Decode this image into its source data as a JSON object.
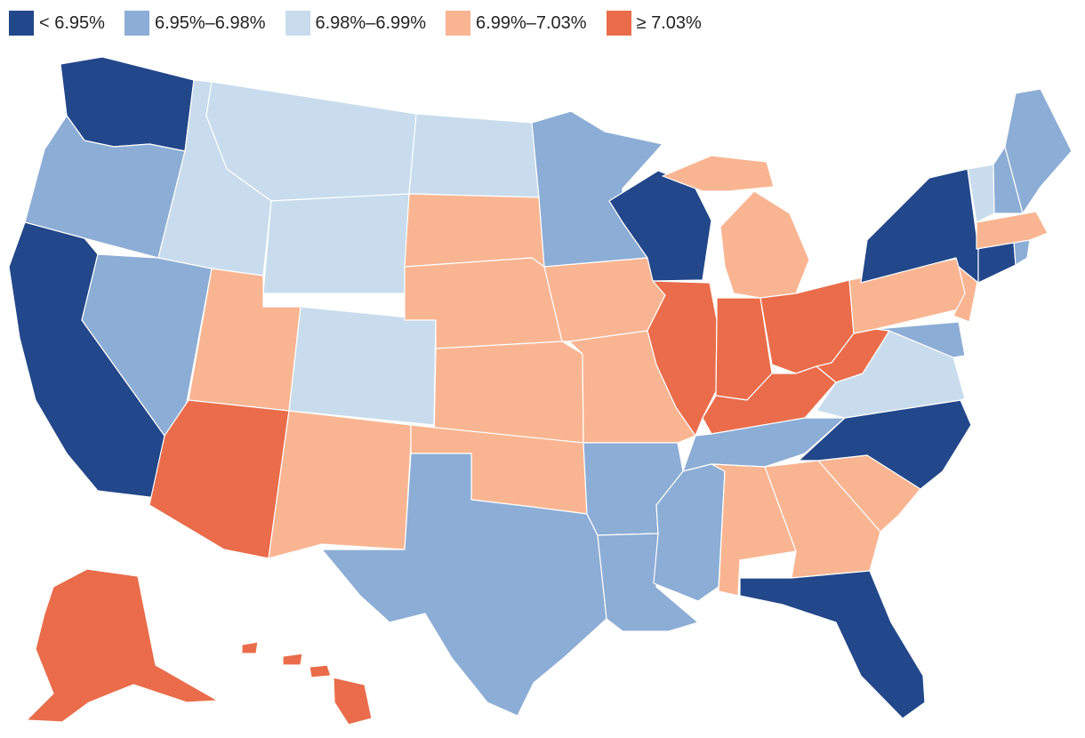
{
  "legend": [
    {
      "label": "< 6.95%",
      "color": "#22478a"
    },
    {
      "label": "6.95%–6.98%",
      "color": "#8cadd5"
    },
    {
      "label": "6.98%–6.99%",
      "color": "#c8dced"
    },
    {
      "label": "6.99%–7.03%",
      "color": "#f9b591"
    },
    {
      "label": "≥ 7.03%",
      "color": "#ea6c4a"
    }
  ],
  "states": {
    "WA": 0,
    "OR": 1,
    "CA": 0,
    "NV": 1,
    "ID": 2,
    "MT": 2,
    "WY": 2,
    "UT": 3,
    "AZ": 4,
    "CO": 2,
    "NM": 3,
    "ND": 2,
    "SD": 3,
    "NE": 3,
    "KS": 3,
    "OK": 3,
    "TX": 1,
    "MN": 1,
    "IA": 3,
    "MO": 3,
    "AR": 1,
    "LA": 1,
    "WI": 0,
    "IL": 4,
    "MI": 3,
    "IN": 4,
    "OH": 4,
    "KY": 4,
    "TN": 1,
    "MS": 1,
    "AL": 3,
    "GA": 3,
    "FL": 0,
    "SC": 3,
    "NC": 0,
    "VA": 2,
    "WV": 4,
    "MD": 1,
    "DE": 2,
    "PA": 3,
    "NJ": 3,
    "NY": 0,
    "CT": 0,
    "RI": 1,
    "MA": 3,
    "VT": 2,
    "NH": 1,
    "ME": 1,
    "AK": 4,
    "HI": 4
  }
}
